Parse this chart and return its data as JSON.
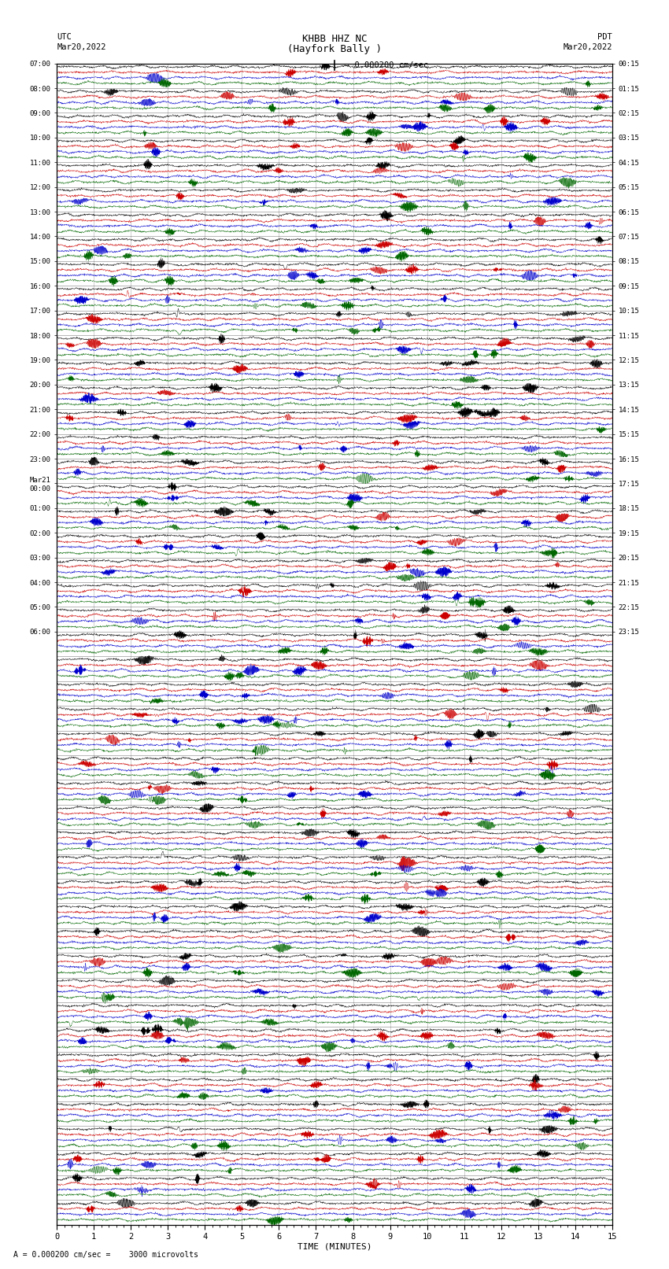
{
  "title_line1": "KHBB HHZ NC",
  "title_line2": "(Hayfork Bally )",
  "scale_label": "= 0.000200 cm/sec",
  "left_label_line1": "UTC",
  "left_label_line2": "Mar20,2022",
  "right_label_line1": "PDT",
  "right_label_line2": "Mar20,2022",
  "bottom_note": "A = 0.000200 cm/sec =    3000 microvolts",
  "xlabel": "TIME (MINUTES)",
  "xmin": 0,
  "xmax": 15,
  "bg_color": "#ffffff",
  "trace_colors": [
    "#000000",
    "#cc0000",
    "#0000cc",
    "#006600"
  ],
  "grid_color": "#888888",
  "n_rows": 47,
  "n_traces_per_row": 4,
  "seed": 42,
  "utc_row_labels": [
    "07:00",
    "08:00",
    "09:00",
    "10:00",
    "11:00",
    "12:00",
    "13:00",
    "14:00",
    "15:00",
    "16:00",
    "17:00",
    "18:00",
    "19:00",
    "20:00",
    "21:00",
    "22:00",
    "23:00",
    "Mar21\n00:00",
    "01:00",
    "02:00",
    "03:00",
    "04:00",
    "05:00",
    "06:00"
  ],
  "pdt_row_labels": [
    "00:15",
    "01:15",
    "02:15",
    "03:15",
    "04:15",
    "05:15",
    "06:15",
    "07:15",
    "08:15",
    "09:15",
    "10:15",
    "11:15",
    "12:15",
    "13:15",
    "14:15",
    "15:15",
    "16:15",
    "17:15",
    "18:15",
    "19:15",
    "20:15",
    "21:15",
    "22:15",
    "23:15"
  ]
}
